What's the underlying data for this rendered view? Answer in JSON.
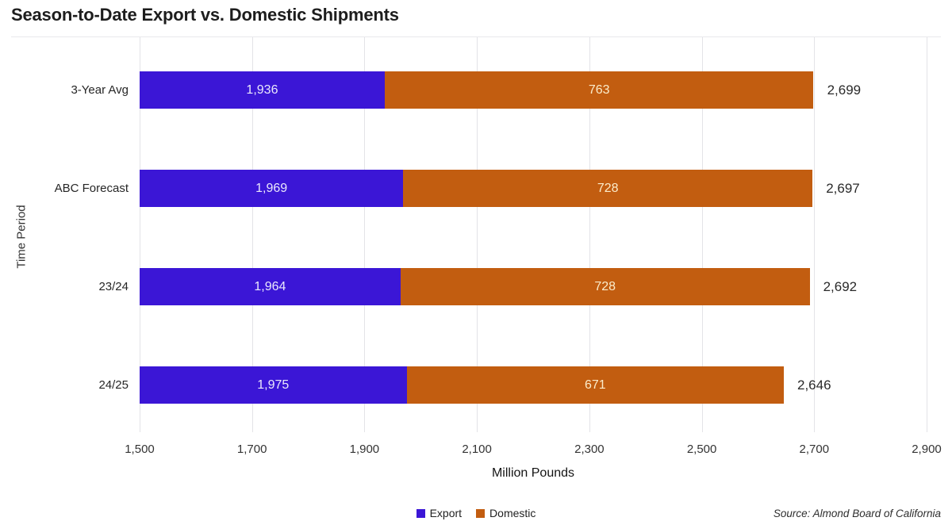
{
  "title": "Season-to-Date Export vs. Domestic Shipments",
  "source": "Source: Almond Board of California",
  "colors": {
    "export": "#3b16d6",
    "domestic": "#c25d10",
    "grid": "#e3e3e7",
    "export_inside_label": "#eae8fc",
    "domestic_inside_label": "#fbeccb",
    "total_label": "#2a2a2a"
  },
  "legend": {
    "items": [
      {
        "label": "Export",
        "color": "#3b16d6"
      },
      {
        "label": "Domestic",
        "color": "#c25d10"
      }
    ]
  },
  "chart_data": {
    "type": "bar",
    "orientation": "horizontal",
    "stacked": true,
    "title": "Season-to-Date Export vs. Domestic Shipments",
    "xlabel": "Million Pounds",
    "ylabel": "Time Period",
    "categories": [
      "3-Year Avg",
      "ABC Forecast",
      "23/24",
      "24/25"
    ],
    "series": [
      {
        "name": "Export",
        "color": "#3b16d6",
        "values": [
          1936,
          1969,
          1964,
          1975
        ]
      },
      {
        "name": "Domestic",
        "color": "#c25d10",
        "values": [
          763,
          728,
          728,
          671
        ]
      }
    ],
    "totals": [
      2699,
      2697,
      2692,
      2646
    ],
    "xlim": [
      1500,
      2900
    ],
    "x_ticks": [
      1500,
      1700,
      1900,
      2100,
      2300,
      2500,
      2700,
      2900
    ],
    "grid": "vertical",
    "legend_position": "bottom-center",
    "bars_start_at_axis_min": true
  }
}
